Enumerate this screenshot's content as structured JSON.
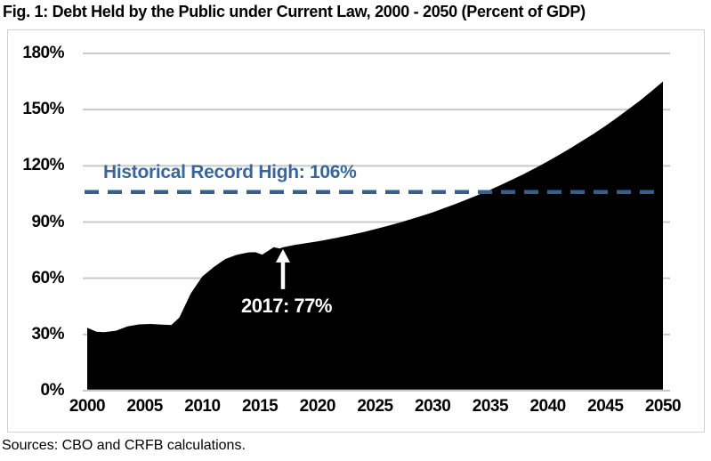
{
  "title": "Fig. 1: Debt Held by the Public under Current Law, 2000 - 2050 (Percent of GDP)",
  "source_note": "Sources: CBO and CRFB calculations.",
  "chart_data": {
    "type": "area",
    "title": "Fig. 1: Debt Held by the Public under Current Law, 2000 - 2050 (Percent of GDP)",
    "xlabel": "",
    "ylabel": "Percent of GDP",
    "x_range": [
      2000,
      2050
    ],
    "y_range": [
      0,
      180
    ],
    "grid": true,
    "grid_color": "#c9c9c9",
    "area_color": "#000000",
    "x_ticks": [
      "2000",
      "2005",
      "2010",
      "2015",
      "2020",
      "2025",
      "2030",
      "2035",
      "2040",
      "2045",
      "2050"
    ],
    "y_ticks": [
      {
        "value": 0,
        "label": "0%"
      },
      {
        "value": 30,
        "label": "30%"
      },
      {
        "value": 60,
        "label": "60%"
      },
      {
        "value": 90,
        "label": "90%"
      },
      {
        "value": 120,
        "label": "120%"
      },
      {
        "value": 150,
        "label": "150%"
      },
      {
        "value": 180,
        "label": "180%"
      }
    ],
    "reference_line": {
      "label": "Historical Record High: 106%",
      "value": 106,
      "color": "#35608e",
      "style": "dashed"
    },
    "annotation": {
      "label": "2017: 77%",
      "year": 2017,
      "value": 77,
      "color": "#ffffff"
    },
    "series": [
      {
        "name": "Debt Held by the Public (Percent of GDP)",
        "points": [
          [
            2000,
            33.6
          ],
          [
            2000.8,
            31.5
          ],
          [
            2001.5,
            31.2
          ],
          [
            2002.5,
            32.0
          ],
          [
            2003.5,
            34.3
          ],
          [
            2004.5,
            35.4
          ],
          [
            2005.5,
            35.6
          ],
          [
            2006.5,
            35.3
          ],
          [
            2007.3,
            35.0
          ],
          [
            2008,
            39.0
          ],
          [
            2009,
            52.0
          ],
          [
            2010,
            61.0
          ],
          [
            2011,
            66.0
          ],
          [
            2012,
            70.3
          ],
          [
            2013,
            72.5
          ],
          [
            2014,
            73.8
          ],
          [
            2014.6,
            73.9
          ],
          [
            2015.2,
            72.6
          ],
          [
            2016.2,
            76.6
          ],
          [
            2016.7,
            75.9
          ],
          [
            2017,
            76.5
          ],
          [
            2018,
            77.8
          ],
          [
            2019,
            78.7
          ],
          [
            2020,
            79.7
          ],
          [
            2021,
            80.8
          ],
          [
            2022,
            82.0
          ],
          [
            2023,
            83.3
          ],
          [
            2024,
            84.7
          ],
          [
            2025,
            86.2
          ],
          [
            2026,
            87.8
          ],
          [
            2027,
            89.5
          ],
          [
            2028,
            91.3
          ],
          [
            2029,
            93.2
          ],
          [
            2030,
            95.2
          ],
          [
            2031,
            97.4
          ],
          [
            2032,
            99.7
          ],
          [
            2033,
            102.1
          ],
          [
            2034,
            104.6
          ],
          [
            2035,
            107.2
          ],
          [
            2036,
            110.0
          ],
          [
            2037,
            112.9
          ],
          [
            2038,
            115.9
          ],
          [
            2039,
            119.1
          ],
          [
            2040,
            122.4
          ],
          [
            2041,
            125.9
          ],
          [
            2042,
            129.5
          ],
          [
            2043,
            133.3
          ],
          [
            2044,
            137.2
          ],
          [
            2045,
            141.3
          ],
          [
            2046,
            145.6
          ],
          [
            2047,
            150.2
          ],
          [
            2048,
            154.8
          ],
          [
            2049,
            159.8
          ],
          [
            2050,
            165.0
          ]
        ]
      }
    ]
  }
}
